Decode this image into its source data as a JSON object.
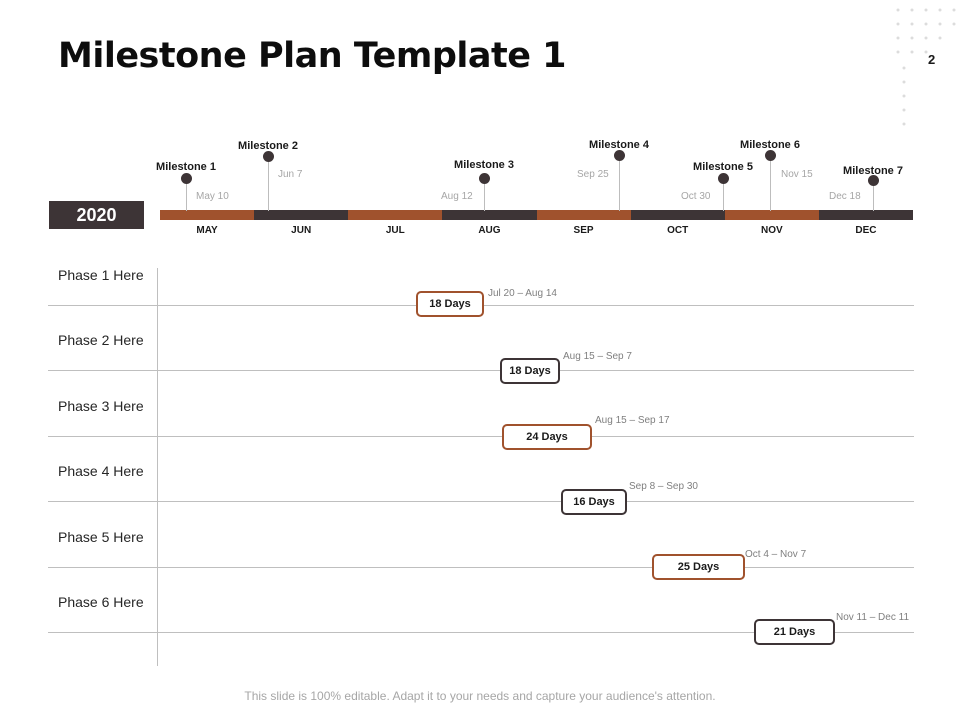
{
  "title": "Milestone Plan Template 1",
  "page_number": "2",
  "year": "2020",
  "colors": {
    "brown": "#a0522d",
    "dark": "#3d3436",
    "grid": "#bfbfbf"
  },
  "months": [
    "MAY",
    "JUN",
    "JUL",
    "AUG",
    "SEP",
    "OCT",
    "NOV",
    "DEC"
  ],
  "month_colors": [
    "brown",
    "dark",
    "brown",
    "dark",
    "brown",
    "dark",
    "brown",
    "dark"
  ],
  "milestones": [
    {
      "name": "Milestone 1",
      "date": "May 10"
    },
    {
      "name": "Milestone 2",
      "date": "Jun 7"
    },
    {
      "name": "Milestone 3",
      "date": "Aug 12"
    },
    {
      "name": "Milestone 4",
      "date": "Sep 25"
    },
    {
      "name": "Milestone 5",
      "date": "Oct 30"
    },
    {
      "name": "Milestone 6",
      "date": "Nov 15"
    },
    {
      "name": "Milestone 7",
      "date": "Dec 18"
    }
  ],
  "phases": [
    {
      "label": "Phase 1 Here",
      "duration": "18 Days",
      "range": "Jul 20 – Aug 14",
      "color": "brown"
    },
    {
      "label": "Phase 2 Here",
      "duration": "18 Days",
      "range": "Aug 15 – Sep 7",
      "color": "dark"
    },
    {
      "label": "Phase 3 Here",
      "duration": "24 Days",
      "range": "Aug 15 – Sep 17",
      "color": "brown"
    },
    {
      "label": "Phase 4 Here",
      "duration": "16 Days",
      "range": "Sep 8 – Sep 30",
      "color": "dark"
    },
    {
      "label": "Phase 5 Here",
      "duration": "25 Days",
      "range": "Oct 4 – Nov 7",
      "color": "brown"
    },
    {
      "label": "Phase 6 Here",
      "duration": "21 Days",
      "range": "Nov 11 – Dec 11",
      "color": "dark"
    }
  ],
  "footer": "This slide is 100% editable. Adapt it to your needs and capture your audience's attention."
}
